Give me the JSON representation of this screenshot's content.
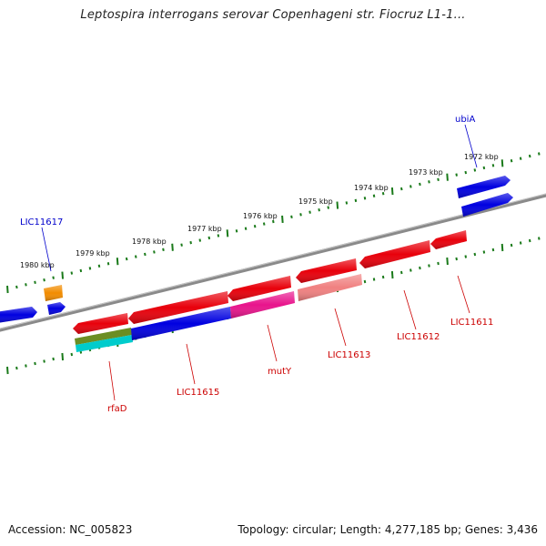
{
  "title": "Leptospira interrogans serovar Copenhageni str. Fiocruz L1-1...",
  "footer": {
    "accession": "Accession: NC_005823",
    "summary": "Topology: circular; Length: 4,277,185 bp; Genes: 3,436"
  },
  "colors": {
    "red": "#e8000b",
    "blue": "#0000e0",
    "magenta": "#e8148c",
    "salmon": "#f08080",
    "orange": "#f28c00",
    "olive": "#6b8e23",
    "cyan": "#00cccc",
    "tick_green": "#1a7a1a",
    "backbone": "#888888",
    "label_blue": "#0000cc",
    "label_red": "#cc0000"
  },
  "ticks": [
    {
      "label": "1972 kbp"
    },
    {
      "label": "1973 kbp"
    },
    {
      "label": "1974 kbp"
    },
    {
      "label": "1975 kbp"
    },
    {
      "label": "1976 kbp"
    },
    {
      "label": "1977 kbp"
    },
    {
      "label": "1978 kbp"
    },
    {
      "label": "1979 kbp"
    },
    {
      "label": "1980 kbp"
    }
  ],
  "genes_top": [
    {
      "label": "ubiA",
      "color": "blue"
    },
    {
      "label": "LIC11617",
      "color": "blue"
    }
  ],
  "genes_bottom": [
    {
      "label": "rfaD",
      "color": "red"
    },
    {
      "label": "LIC11615",
      "color": "red"
    },
    {
      "label": "mutY",
      "color": "red"
    },
    {
      "label": "LIC11613",
      "color": "red"
    },
    {
      "label": "LIC11612",
      "color": "red"
    },
    {
      "label": "LIC11611",
      "color": "red"
    }
  ]
}
